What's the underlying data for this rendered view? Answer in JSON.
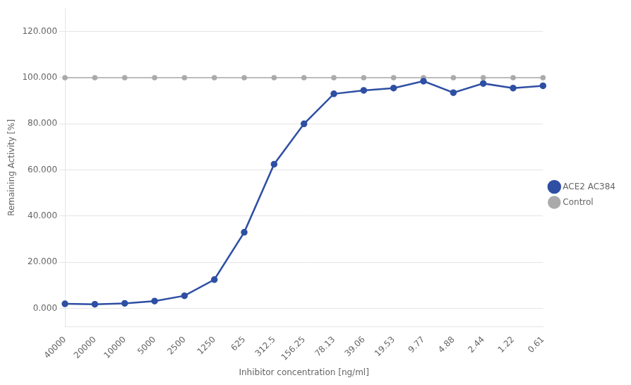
{
  "chart_data": {
    "type": "line",
    "xlabel": "Inhibitor concentration [ng/ml]",
    "ylabel": "Remaining Activity [%]",
    "categories": [
      "40000",
      "20000",
      "10000",
      "5000",
      "2500",
      "1250",
      "625",
      "312.5",
      "156.25",
      "78.13",
      "39.06",
      "19.53",
      "9.77",
      "4.88",
      "2.44",
      "1.22",
      "0.61"
    ],
    "series": [
      {
        "name": "Control",
        "color": "#AAAAAA",
        "marker": "circle",
        "values": [
          100.0,
          100.0,
          100.0,
          100.0,
          100.0,
          100.0,
          100.0,
          100.0,
          100.0,
          100.0,
          100.0,
          100.0,
          100.0,
          100.0,
          100.0,
          100.0,
          100.0
        ]
      },
      {
        "name": "ACE2 AC384",
        "color": "#2E4FA3",
        "marker": "circle",
        "values": [
          2.0,
          1.8,
          2.2,
          3.2,
          5.5,
          12.5,
          33.0,
          62.5,
          80.0,
          93.0,
          94.5,
          95.5,
          98.5,
          93.5,
          97.5,
          95.5,
          96.5
        ]
      }
    ],
    "ylim": [
      -8,
      130
    ],
    "yticks": [
      {
        "value": 0,
        "label": "0.000"
      },
      {
        "value": 20,
        "label": "20.000"
      },
      {
        "value": 40,
        "label": "40.000"
      },
      {
        "value": 60,
        "label": "60.000"
      },
      {
        "value": 80,
        "label": "80.000"
      },
      {
        "value": 100,
        "label": "100.000"
      },
      {
        "value": 120,
        "label": "120.000"
      }
    ],
    "grid": true,
    "legend": "right"
  }
}
